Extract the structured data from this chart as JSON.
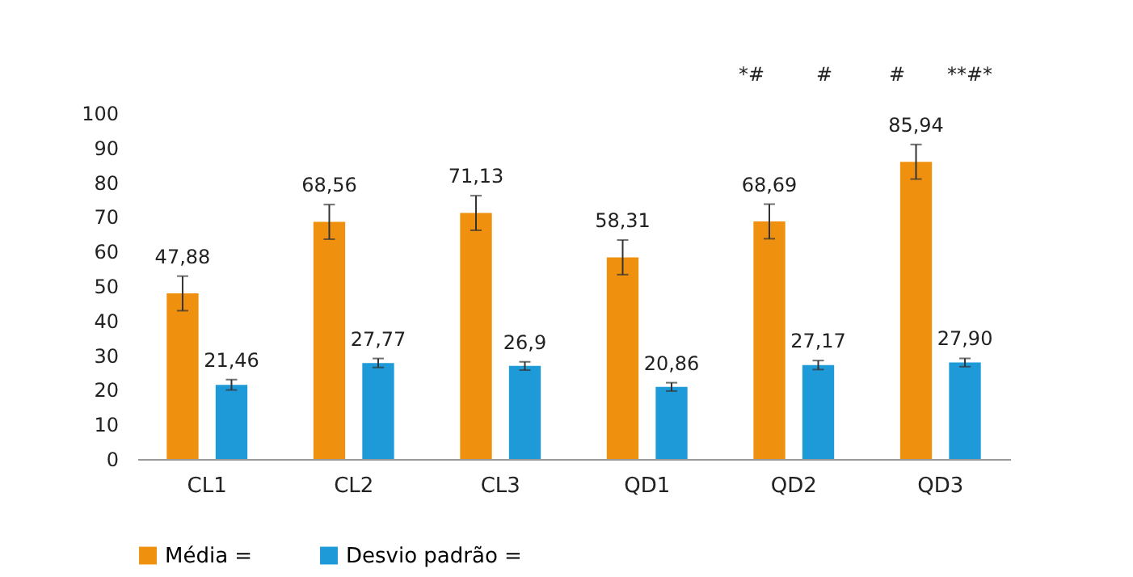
{
  "chart_data": {
    "type": "bar",
    "categories": [
      "CL1",
      "CL2",
      "CL3",
      "QD1",
      "QD2",
      "QD3"
    ],
    "series": [
      {
        "name": "Média =",
        "color": "#f0900f",
        "values": [
          47.88,
          68.56,
          71.13,
          58.31,
          68.69,
          85.94
        ],
        "errors": [
          5,
          5,
          5,
          5,
          5,
          5
        ],
        "value_labels": [
          "47,88",
          "68,56",
          "71,13",
          "58,31",
          "68,69",
          "85,94"
        ]
      },
      {
        "name": "Desvio padrão =",
        "color": "#1e9ad8",
        "values": [
          21.46,
          27.77,
          26.9,
          20.86,
          27.17,
          27.9
        ],
        "errors": [
          1.5,
          1.3,
          1.2,
          1.2,
          1.3,
          1.2
        ],
        "value_labels": [
          "21,46",
          "27,77",
          "26,9",
          "20,86",
          "27,17",
          "27,90"
        ]
      }
    ],
    "ylim": [
      0,
      100
    ],
    "yticks": [
      0,
      10,
      20,
      30,
      40,
      50,
      60,
      70,
      80,
      90,
      100
    ],
    "grid": false,
    "legend": "bottom",
    "annotations": [
      "*#",
      "#",
      "#",
      "**#*"
    ]
  }
}
